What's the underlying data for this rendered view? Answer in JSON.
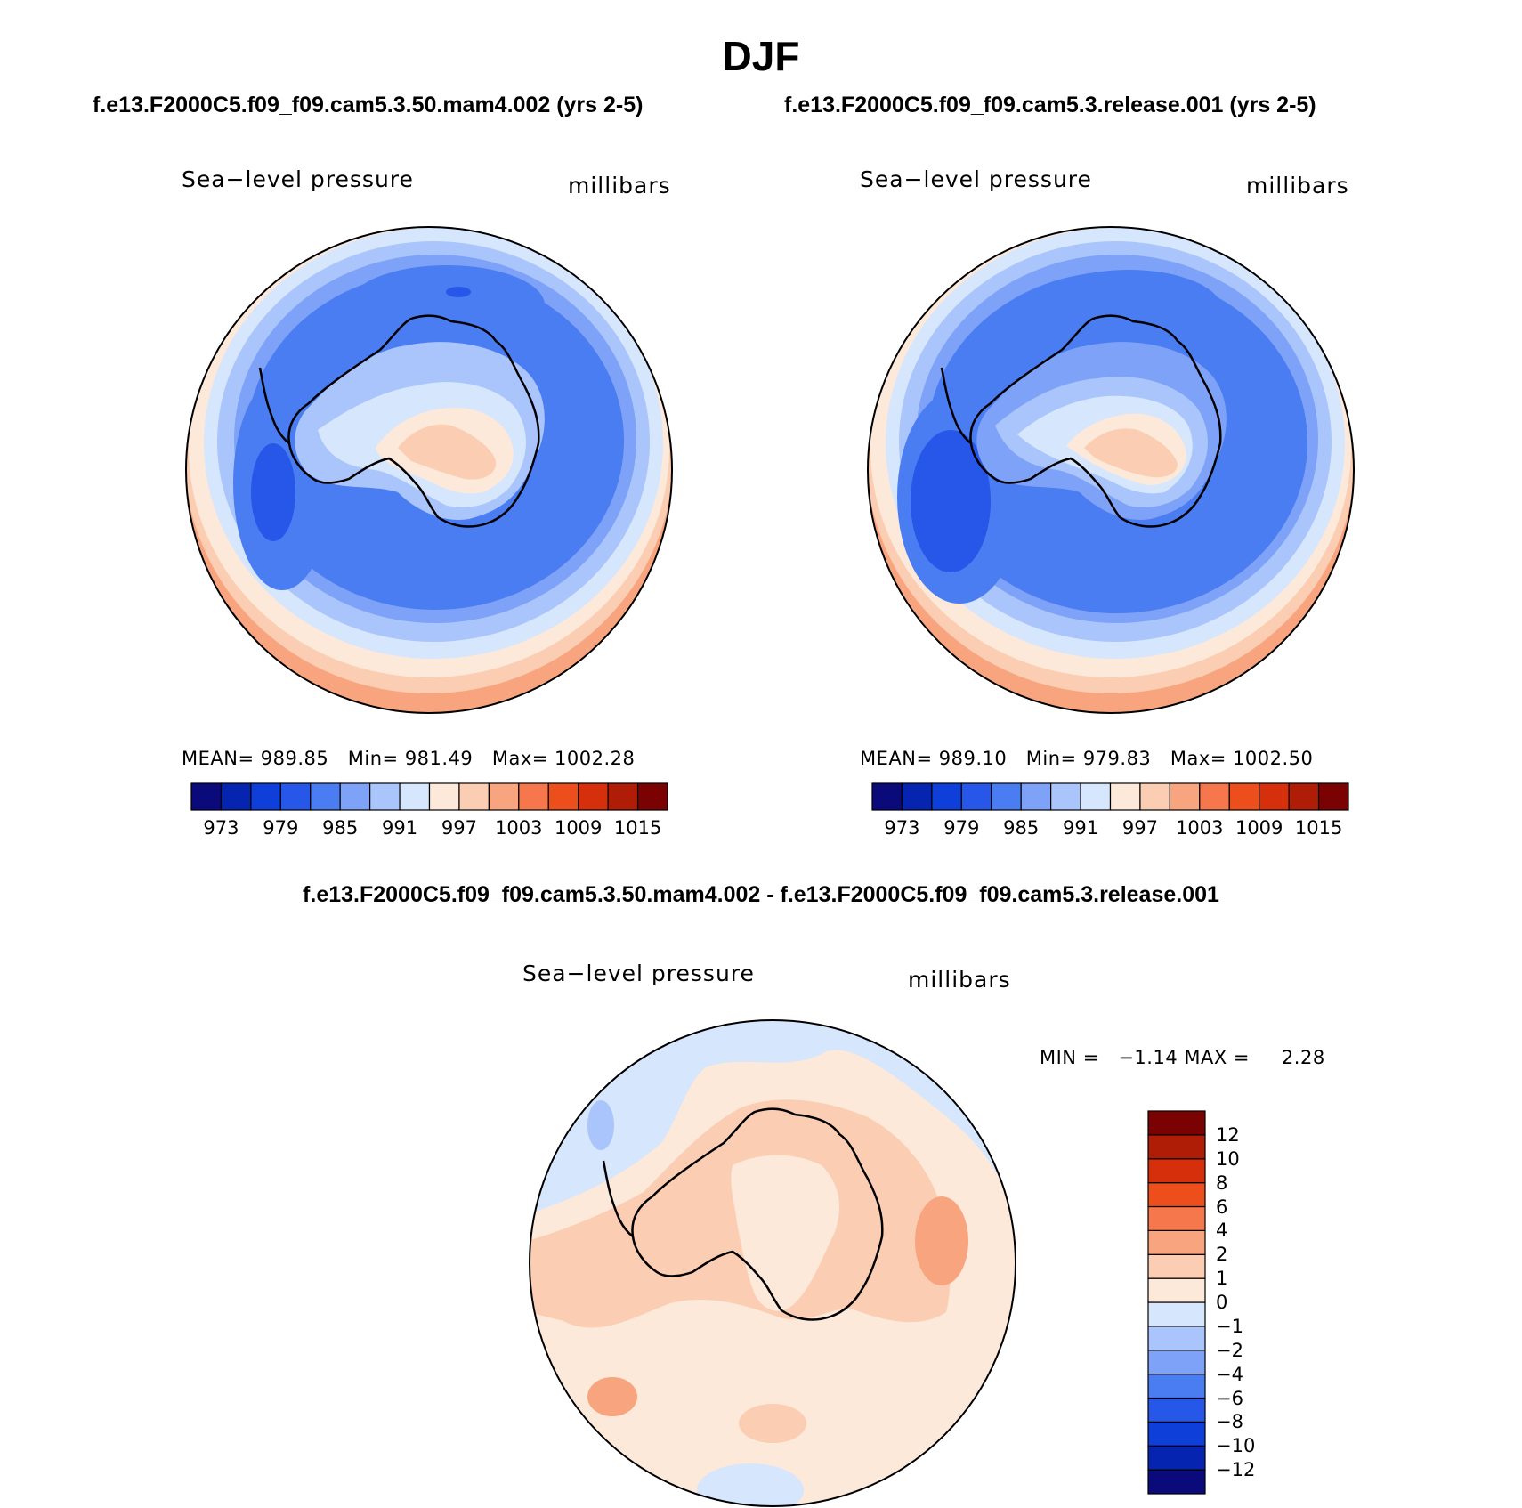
{
  "title": "DJF",
  "chart_data": [
    {
      "type": "heatmap",
      "projection": "south-polar-stereographic",
      "case_title": "f.e13.F2000C5.f09_f09.cam5.3.50.mam4.002 (yrs 2-5)",
      "variable": "Sea−level pressure",
      "units": "millibars",
      "stats": {
        "mean_label": "MEAN=",
        "mean": "989.85",
        "min_label": "Min=",
        "min": "981.49",
        "max_label": "Max=",
        "max": "1002.28"
      },
      "levels": [
        973,
        976,
        979,
        982,
        985,
        988,
        991,
        994,
        997,
        1000,
        1003,
        1006,
        1009,
        1012,
        1015
      ],
      "level_labels": [
        "973",
        "979",
        "985",
        "991",
        "997",
        "1003",
        "1009",
        "1015"
      ],
      "colors": [
        "#0a0a7a",
        "#0525b0",
        "#0f3fd9",
        "#2657e8",
        "#4a7cf2",
        "#7da2f7",
        "#a9c5fb",
        "#d6e6fd",
        "#fde9da",
        "#fbcdb2",
        "#f8a47f",
        "#f6774b",
        "#ec4e1c",
        "#d62f0b",
        "#b01d06",
        "#7a0202"
      ]
    },
    {
      "type": "heatmap",
      "projection": "south-polar-stereographic",
      "case_title": "f.e13.F2000C5.f09_f09.cam5.3.release.001 (yrs 2-5)",
      "variable": "Sea−level pressure",
      "units": "millibars",
      "stats": {
        "mean_label": "MEAN=",
        "mean": "989.10",
        "min_label": "Min=",
        "min": "979.83",
        "max_label": "Max=",
        "max": "1002.50"
      },
      "levels": [
        973,
        976,
        979,
        982,
        985,
        988,
        991,
        994,
        997,
        1000,
        1003,
        1006,
        1009,
        1012,
        1015
      ],
      "level_labels": [
        "973",
        "979",
        "985",
        "991",
        "997",
        "1003",
        "1009",
        "1015"
      ],
      "colors": [
        "#0a0a7a",
        "#0525b0",
        "#0f3fd9",
        "#2657e8",
        "#4a7cf2",
        "#7da2f7",
        "#a9c5fb",
        "#d6e6fd",
        "#fde9da",
        "#fbcdb2",
        "#f8a47f",
        "#f6774b",
        "#ec4e1c",
        "#d62f0b",
        "#b01d06",
        "#7a0202"
      ]
    },
    {
      "type": "heatmap",
      "projection": "south-polar-stereographic",
      "case_title": "f.e13.F2000C5.f09_f09.cam5.3.50.mam4.002 - f.e13.F2000C5.f09_f09.cam5.3.release.001",
      "variable": "Sea−level pressure",
      "units": "millibars",
      "stats": {
        "min_label": "MIN =",
        "min": "−1.14",
        "max_label": "MAX =",
        "max": "2.28"
      },
      "levels": [
        -12,
        -10,
        -8,
        -6,
        -4,
        -2,
        -1,
        0,
        1,
        2,
        4,
        6,
        8,
        10,
        12
      ],
      "level_labels": [
        "−12",
        "−10",
        "−8",
        "−6",
        "−4",
        "−2",
        "−1",
        "0",
        "1",
        "2",
        "4",
        "6",
        "8",
        "10",
        "12"
      ],
      "colors": [
        "#0a0a7a",
        "#0525b0",
        "#0f3fd9",
        "#2657e8",
        "#4a7cf2",
        "#7da2f7",
        "#a9c5fb",
        "#d6e6fd",
        "#fde9da",
        "#fbcdb2",
        "#f8a47f",
        "#f6774b",
        "#ec4e1c",
        "#d62f0b",
        "#b01d06",
        "#7a0202"
      ]
    }
  ]
}
